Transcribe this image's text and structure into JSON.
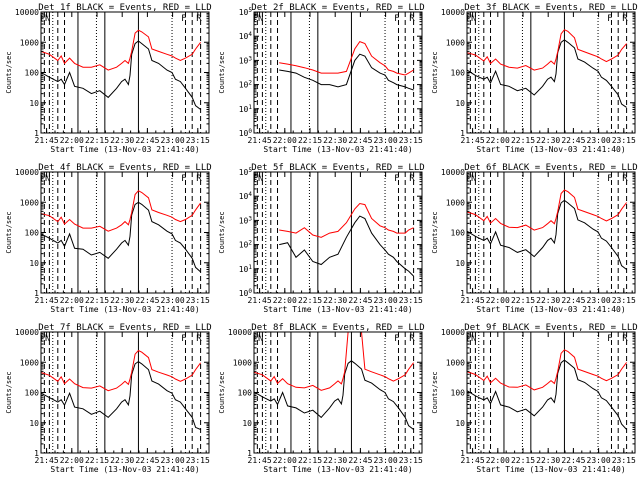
{
  "figure": {
    "panel_title_suffix": "BLACK = Events, RED = LLD",
    "xlabel": "Start Time (13-Nov-03 21:41:40)",
    "ylabel": "Counts/sec",
    "x_ticks": [
      "21:45",
      "22:00",
      "22:15",
      "22:30",
      "22:45",
      "23:00",
      "23:15"
    ],
    "series_names": [
      "Events",
      "LLD"
    ],
    "series_colors": {
      "Events": "#000000",
      "LLD": "#ff0000"
    },
    "legend_markers": [
      "F",
      "N",
      "F",
      "R"
    ]
  },
  "chart_data": [
    {
      "type": "line",
      "title": "Det 1f BLACK = Events, RED = LLD",
      "scale_style": "plain",
      "ylim_log10": [
        0,
        4
      ],
      "y_tick_labels": [
        "1",
        "10",
        "100",
        "1000",
        "10000"
      ],
      "xlabel": "Start Time (13-Nov-03 21:41:40)",
      "ylabel": "Counts/sec",
      "x_minutes": [
        0,
        5,
        10,
        12,
        14,
        17,
        20,
        25,
        30,
        35,
        40,
        45,
        48,
        50,
        52,
        53,
        54,
        56,
        58,
        60,
        64,
        66,
        70,
        75,
        78,
        80,
        83,
        86,
        90,
        92,
        95
      ],
      "series": [
        {
          "name": "Events",
          "values": [
            100,
            70,
            50,
            60,
            40,
            100,
            35,
            30,
            20,
            25,
            15,
            30,
            50,
            60,
            40,
            80,
            400,
            900,
            1100,
            900,
            600,
            250,
            200,
            120,
            100,
            60,
            50,
            30,
            15,
            8,
            6
          ]
        },
        {
          "name": "LLD",
          "values": [
            500,
            400,
            250,
            350,
            200,
            300,
            200,
            150,
            150,
            180,
            120,
            150,
            200,
            250,
            200,
            300,
            500,
            2000,
            2500,
            2200,
            1500,
            600,
            500,
            400,
            350,
            300,
            250,
            300,
            400,
            600,
            1000
          ]
        }
      ]
    },
    {
      "type": "line",
      "title": "Det 2f BLACK = Events, RED = LLD",
      "scale_style": "exp",
      "ylim_log10": [
        0,
        5
      ],
      "y_tick_labels": [
        "10^0",
        "10^1",
        "10^2",
        "10^3",
        "10^4",
        "10^5"
      ],
      "xlabel": "Start Time (13-Nov-03 21:41:40)",
      "ylabel": "Counts/sec",
      "x_minutes": [
        15,
        20,
        25,
        30,
        35,
        40,
        45,
        50,
        55,
        60,
        63,
        66,
        70,
        75,
        78,
        80,
        83,
        85,
        90,
        92,
        95
      ],
      "series": [
        {
          "name": "Events",
          "values": [
            400,
            350,
            300,
            200,
            150,
            100,
            100,
            80,
            100,
            1000,
            1800,
            1500,
            500,
            300,
            250,
            150,
            120,
            100,
            80,
            70,
            60
          ]
        },
        {
          "name": "LLD",
          "values": [
            800,
            700,
            600,
            500,
            400,
            300,
            300,
            300,
            350,
            3000,
            6000,
            5000,
            1500,
            800,
            600,
            400,
            350,
            300,
            250,
            300,
            400
          ]
        }
      ]
    },
    {
      "type": "line",
      "title": "Det 3f BLACK = Events, RED = LLD",
      "scale_style": "plain",
      "ylim_log10": [
        0,
        4
      ],
      "y_tick_labels": [
        "1",
        "10",
        "100",
        "1000",
        "10000"
      ],
      "xlabel": "Start Time (13-Nov-03 21:41:40)",
      "ylabel": "Counts/sec",
      "x_minutes": [
        0,
        5,
        10,
        12,
        14,
        17,
        20,
        25,
        30,
        35,
        40,
        45,
        48,
        50,
        52,
        53,
        54,
        56,
        58,
        60,
        64,
        66,
        70,
        75,
        78,
        80,
        83,
        86,
        90,
        92,
        95
      ],
      "series": [
        {
          "name": "Events",
          "values": [
            120,
            80,
            60,
            70,
            45,
            110,
            40,
            35,
            25,
            30,
            18,
            35,
            60,
            70,
            50,
            90,
            450,
            1000,
            1200,
            1000,
            650,
            280,
            220,
            140,
            110,
            70,
            55,
            35,
            18,
            9,
            7
          ]
        },
        {
          "name": "LLD",
          "values": [
            450,
            380,
            240,
            330,
            200,
            280,
            190,
            150,
            140,
            170,
            120,
            140,
            190,
            240,
            190,
            280,
            480,
            1900,
            2600,
            2300,
            1400,
            580,
            480,
            380,
            330,
            280,
            230,
            280,
            380,
            580,
            900
          ]
        }
      ]
    },
    {
      "type": "line",
      "title": "Det 4f BLACK = Events, RED = LLD",
      "scale_style": "plain",
      "ylim_log10": [
        0,
        4
      ],
      "y_tick_labels": [
        "1",
        "10",
        "100",
        "1000",
        "10000"
      ],
      "xlabel": "Start Time (13-Nov-03 21:41:40)",
      "ylabel": "Counts/sec",
      "x_minutes": [
        0,
        5,
        10,
        12,
        14,
        17,
        20,
        25,
        30,
        35,
        40,
        45,
        48,
        50,
        52,
        53,
        54,
        56,
        58,
        60,
        64,
        66,
        70,
        75,
        78,
        80,
        83,
        86,
        90,
        92,
        95
      ],
      "series": [
        {
          "name": "Events",
          "values": [
            90,
            65,
            45,
            55,
            35,
            90,
            30,
            28,
            18,
            22,
            14,
            28,
            45,
            55,
            38,
            75,
            380,
            850,
            1000,
            850,
            550,
            230,
            180,
            110,
            90,
            55,
            45,
            28,
            14,
            7,
            5
          ]
        },
        {
          "name": "LLD",
          "values": [
            420,
            360,
            230,
            320,
            190,
            270,
            190,
            140,
            140,
            160,
            110,
            140,
            180,
            230,
            180,
            270,
            460,
            1800,
            2400,
            2100,
            1400,
            560,
            460,
            370,
            320,
            270,
            230,
            270,
            370,
            560,
            950
          ]
        }
      ]
    },
    {
      "type": "line",
      "title": "Det 5f BLACK = Events, RED = LLD",
      "scale_style": "exp",
      "ylim_log10": [
        0,
        5
      ],
      "y_tick_labels": [
        "10^0",
        "10^1",
        "10^2",
        "10^3",
        "10^4",
        "10^5"
      ],
      "xlabel": "Start Time (13-Nov-03 21:41:40)",
      "ylabel": "Counts/sec",
      "x_minutes": [
        15,
        20,
        25,
        30,
        35,
        40,
        45,
        50,
        55,
        60,
        63,
        66,
        70,
        75,
        78,
        80,
        83,
        85,
        90,
        92,
        95
      ],
      "series": [
        {
          "name": "Events",
          "values": [
            100,
            120,
            30,
            60,
            20,
            15,
            30,
            40,
            200,
            800,
            1500,
            1200,
            300,
            100,
            60,
            40,
            30,
            20,
            10,
            8,
            5
          ]
        },
        {
          "name": "LLD",
          "values": [
            400,
            350,
            300,
            500,
            250,
            200,
            300,
            350,
            800,
            3000,
            5000,
            4500,
            1200,
            600,
            500,
            400,
            350,
            300,
            300,
            400,
            500
          ]
        }
      ]
    },
    {
      "type": "line",
      "title": "Det 6f BLACK = Events, RED = LLD",
      "scale_style": "plain",
      "ylim_log10": [
        0,
        4
      ],
      "y_tick_labels": [
        "1",
        "10",
        "100",
        "1000",
        "10000"
      ],
      "xlabel": "Start Time (13-Nov-03 21:41:40)",
      "ylabel": "Counts/sec",
      "x_minutes": [
        0,
        5,
        10,
        12,
        14,
        17,
        20,
        25,
        30,
        35,
        40,
        45,
        48,
        50,
        52,
        53,
        54,
        56,
        58,
        60,
        64,
        66,
        70,
        75,
        78,
        80,
        83,
        86,
        90,
        92,
        95
      ],
      "series": [
        {
          "name": "Events",
          "values": [
            110,
            75,
            55,
            65,
            42,
            105,
            38,
            32,
            22,
            27,
            16,
            32,
            55,
            65,
            45,
            85,
            420,
            950,
            1150,
            950,
            620,
            260,
            210,
            130,
            105,
            65,
            52,
            32,
            16,
            8,
            6
          ]
        },
        {
          "name": "LLD",
          "values": [
            480,
            390,
            245,
            340,
            205,
            290,
            200,
            150,
            145,
            175,
            120,
            145,
            195,
            245,
            195,
            290,
            490,
            1950,
            2550,
            2250,
            1450,
            590,
            490,
            390,
            340,
            290,
            240,
            290,
            390,
            590,
            980
          ]
        }
      ]
    },
    {
      "type": "line",
      "title": "Det 7f BLACK = Events, RED = LLD",
      "scale_style": "plain",
      "ylim_log10": [
        0,
        4
      ],
      "y_tick_labels": [
        "1",
        "10",
        "100",
        "1000",
        "10000"
      ],
      "xlabel": "Start Time (13-Nov-03 21:41:40)",
      "ylabel": "Counts/sec",
      "x_minutes": [
        0,
        5,
        10,
        12,
        14,
        17,
        20,
        25,
        30,
        35,
        40,
        45,
        48,
        50,
        52,
        53,
        54,
        56,
        58,
        60,
        64,
        66,
        70,
        75,
        78,
        80,
        83,
        86,
        90,
        92,
        95
      ],
      "series": [
        {
          "name": "Events",
          "values": [
            95,
            68,
            48,
            58,
            38,
            95,
            33,
            29,
            19,
            24,
            15,
            29,
            48,
            58,
            39,
            78,
            390,
            880,
            1050,
            880,
            570,
            240,
            190,
            115,
            95,
            58,
            48,
            29,
            15,
            7,
            6
          ]
        },
        {
          "name": "LLD",
          "values": [
            460,
            370,
            235,
            330,
            195,
            280,
            195,
            145,
            140,
            165,
            115,
            140,
            185,
            235,
            185,
            280,
            470,
            1850,
            2450,
            2150,
            1420,
            570,
            470,
            380,
            330,
            280,
            235,
            280,
            380,
            570,
            960
          ]
        }
      ]
    },
    {
      "type": "line",
      "title": "Det 8f BLACK = Events, RED = LLD",
      "scale_style": "plain",
      "ylim_log10": [
        0,
        4
      ],
      "y_tick_labels": [
        "1",
        "10",
        "100",
        "1000",
        "10000"
      ],
      "xlabel": "Start Time (13-Nov-03 21:41:40)",
      "ylabel": "Counts/sec",
      "x_minutes": [
        0,
        5,
        10,
        12,
        14,
        17,
        20,
        25,
        30,
        35,
        40,
        45,
        48,
        50,
        52,
        53,
        54,
        56,
        58,
        60,
        64,
        66,
        70,
        75,
        78,
        80,
        83,
        86,
        90,
        92,
        95
      ],
      "series": [
        {
          "name": "Events",
          "values": [
            105,
            72,
            52,
            62,
            40,
            100,
            36,
            31,
            21,
            26,
            15,
            31,
            52,
            62,
            42,
            82,
            410,
            920,
            1120,
            920,
            600,
            255,
            205,
            125,
            100,
            62,
            50,
            31,
            15,
            8,
            6
          ]
        },
        {
          "name": "LLD",
          "values": [
            470,
            385,
            240,
            335,
            200,
            285,
            195,
            148,
            142,
            172,
            118,
            142,
            192,
            242,
            192,
            285,
            485,
            10000,
            10000,
            10000,
            10000,
            590,
            485,
            385,
            335,
            285,
            238,
            285,
            385,
            585,
            970
          ]
        }
      ]
    },
    {
      "type": "line",
      "title": "Det 9f BLACK = Events, RED = LLD",
      "scale_style": "plain",
      "ylim_log10": [
        0,
        4
      ],
      "y_tick_labels": [
        "1",
        "10",
        "100",
        "1000",
        "10000"
      ],
      "xlabel": "Start Time (13-Nov-03 21:41:40)",
      "ylabel": "Counts/sec",
      "x_minutes": [
        0,
        5,
        10,
        12,
        14,
        17,
        20,
        25,
        30,
        35,
        40,
        45,
        48,
        50,
        52,
        53,
        54,
        56,
        58,
        60,
        64,
        66,
        70,
        75,
        78,
        80,
        83,
        86,
        90,
        92,
        95
      ],
      "series": [
        {
          "name": "Events",
          "values": [
            115,
            78,
            57,
            67,
            43,
            108,
            39,
            33,
            23,
            28,
            17,
            33,
            57,
            67,
            47,
            88,
            430,
            970,
            1180,
            970,
            630,
            265,
            215,
            135,
            108,
            67,
            54,
            33,
            17,
            9,
            6
          ]
        },
        {
          "name": "LLD",
          "values": [
            490,
            395,
            250,
            345,
            210,
            295,
            205,
            152,
            148,
            178,
            122,
            148,
            198,
            248,
            198,
            295,
            495,
            1980,
            2580,
            2280,
            1470,
            595,
            495,
            395,
            345,
            295,
            245,
            295,
            395,
            595,
            990
          ]
        }
      ]
    }
  ]
}
